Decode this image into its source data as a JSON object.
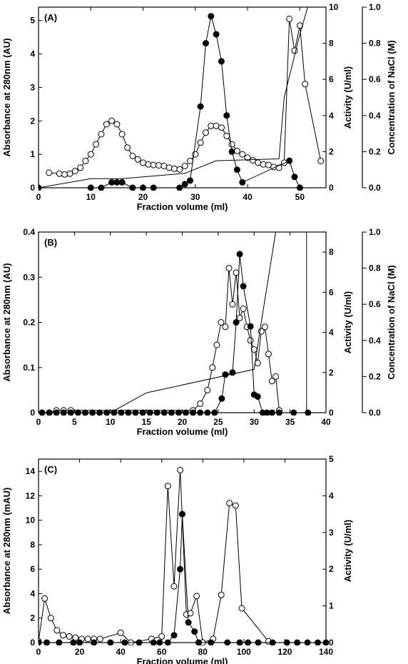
{
  "chart_data": [
    {
      "type": "line",
      "panel_label": "(A)",
      "xlabel": "Fraction volume (ml)",
      "ylabel": "Absorbance at 280nm (AU)",
      "y2label": "Activity (U/ml)",
      "y3label": "Concentration of NaCl (M)",
      "xlim": [
        0,
        55
      ],
      "ylim": [
        0,
        5.4
      ],
      "y2lim": [
        0,
        10
      ],
      "y3lim": [
        0,
        1.0
      ],
      "x_ticks": [
        "0",
        "10",
        "20",
        "30",
        "40",
        "50"
      ],
      "y_ticks": [
        "0",
        "1",
        "2",
        "3",
        "4",
        "5"
      ],
      "y2_ticks": [
        "0",
        "2",
        "4",
        "6",
        "8",
        "10"
      ],
      "y3_ticks": [
        "0.0",
        "0.2",
        "0.4",
        "0.6",
        "0.8",
        "1.0"
      ],
      "series": [
        {
          "axis": "left",
          "marker": "open",
          "x": [
            2,
            4,
            5,
            6,
            7,
            8,
            9,
            10,
            11,
            12,
            13,
            14,
            15,
            16,
            17,
            18,
            19,
            20,
            21,
            22,
            23,
            24,
            25,
            26,
            27,
            28,
            29,
            30,
            31,
            32,
            33,
            34,
            35,
            36,
            37,
            38,
            39,
            40,
            41,
            42,
            43,
            44,
            45,
            46,
            47,
            48,
            49,
            50,
            51,
            54
          ],
          "y": [
            0.45,
            0.42,
            0.4,
            0.42,
            0.5,
            0.6,
            0.8,
            1.0,
            1.3,
            1.6,
            1.9,
            2.0,
            1.9,
            1.6,
            1.2,
            0.95,
            0.85,
            0.75,
            0.7,
            0.68,
            0.67,
            0.65,
            0.6,
            0.57,
            0.55,
            0.65,
            0.8,
            1.0,
            1.35,
            1.65,
            1.85,
            1.85,
            1.8,
            1.55,
            1.3,
            1.1,
            1.0,
            0.9,
            0.82,
            0.75,
            0.7,
            0.68,
            0.62,
            0.6,
            0.75,
            5.05,
            4.1,
            4.85,
            3.1,
            0.8
          ]
        },
        {
          "axis": "right",
          "marker": "filled",
          "x": [
            0,
            10,
            12,
            14,
            15,
            16,
            18,
            20,
            22,
            27,
            28,
            29,
            31,
            32,
            33,
            34,
            35,
            36,
            37,
            38,
            39,
            48,
            49,
            50
          ],
          "y": [
            0,
            0,
            0,
            0.3,
            0.3,
            0.3,
            0,
            0,
            0,
            0,
            0.2,
            0.4,
            4.5,
            8.0,
            9.5,
            8.5,
            7.0,
            4.0,
            2.0,
            1.0,
            0.3,
            1.5,
            0.6,
            0
          ]
        },
        {
          "axis": "third",
          "marker": "line",
          "x": [
            0,
            10,
            16,
            28,
            34,
            46,
            47,
            50,
            51.5
          ],
          "y": [
            0,
            0.05,
            0.05,
            0.08,
            0.15,
            0.16,
            0.5,
            0.85,
            1.0
          ]
        }
      ]
    },
    {
      "type": "line",
      "panel_label": "(B)",
      "xlabel": "Fraction volume (ml)",
      "ylabel": "Absorbance at 280nm (AU)",
      "y2label": "Activity (U/ml)",
      "y3label": "Concentration of NaCl (M)",
      "xlim": [
        0,
        40
      ],
      "ylim": [
        0,
        0.4
      ],
      "y2lim": [
        0,
        9
      ],
      "y3lim": [
        0,
        1.0
      ],
      "x_ticks": [
        "0",
        "5",
        "10",
        "15",
        "20",
        "25",
        "30",
        "35",
        "40"
      ],
      "y_ticks": [
        "0",
        "0.1",
        "0.2",
        "0.3",
        "0.4"
      ],
      "y2_ticks": [
        "0",
        "2",
        "4",
        "6",
        "8"
      ],
      "y3_ticks": [
        "0.0",
        "0.2",
        "0.4",
        "0.6",
        "0.8",
        "1.0"
      ],
      "series": [
        {
          "axis": "left",
          "marker": "open",
          "x": [
            0.5,
            1.5,
            2.5,
            3.5,
            4.5,
            21.5,
            22.5,
            23.5,
            24.2,
            24.8,
            25.4,
            26.0,
            26.5,
            27.0,
            27.5,
            28.0,
            28.5,
            29.0,
            29.5,
            30.0,
            30.5,
            31.0,
            31.5,
            32.0,
            32.5,
            33.0,
            33.5
          ],
          "y": [
            0,
            0,
            0.005,
            0.005,
            0.005,
            0.005,
            0.02,
            0.05,
            0.1,
            0.15,
            0.2,
            0.19,
            0.32,
            0.24,
            0.31,
            0.21,
            0.23,
            0.19,
            0.16,
            0.14,
            0.11,
            0.18,
            0.19,
            0.13,
            0.07,
            0.08,
            0.005
          ]
        },
        {
          "axis": "right",
          "marker": "filled",
          "x": [
            0.5,
            1.5,
            2.5,
            3.5,
            4.5,
            5.5,
            6.5,
            7.5,
            8.5,
            9.5,
            10.5,
            11.5,
            12.5,
            13.5,
            14.5,
            15.5,
            16.5,
            17.5,
            18.5,
            19.5,
            20.5,
            21.5,
            22.5,
            23.5,
            24.5,
            25.5,
            26.0,
            27.0,
            27.5,
            28.0,
            28.5,
            29.5,
            30.0,
            30.5,
            31.2,
            31.8,
            32.5,
            33.5,
            35.5,
            37.5
          ],
          "y": [
            0,
            0,
            0,
            0,
            0,
            0,
            0,
            0,
            0,
            0,
            0,
            0,
            0,
            0,
            0,
            0,
            0,
            0,
            0,
            0,
            0,
            0,
            0,
            0,
            0,
            0.7,
            1.9,
            2.0,
            4.5,
            7.9,
            6.3,
            4.3,
            0.9,
            0.8,
            0,
            0,
            0,
            0,
            0,
            0
          ]
        },
        {
          "axis": "third",
          "marker": "line",
          "x": [
            0,
            10,
            15,
            30,
            31,
            33
          ],
          "y": [
            0,
            0,
            0.11,
            0.24,
            0.5,
            1.0
          ]
        }
      ]
    },
    {
      "type": "line",
      "panel_label": "(C)",
      "xlabel": "Fraction volume (ml)",
      "ylabel": "Absorbance at 280nm (mAU)",
      "y2label": "Activity (U/ml)",
      "xlim": [
        0,
        140
      ],
      "ylim": [
        0,
        15
      ],
      "y2lim": [
        0,
        5
      ],
      "x_ticks": [
        "0",
        "20",
        "40",
        "60",
        "80",
        "100",
        "120",
        "140"
      ],
      "y_ticks": [
        "0",
        "2",
        "4",
        "6",
        "8",
        "10",
        "12",
        "14"
      ],
      "y2_ticks": [
        "0",
        "1",
        "2",
        "3",
        "4",
        "5"
      ],
      "series": [
        {
          "axis": "left",
          "marker": "open",
          "x": [
            0,
            3,
            6,
            9,
            12,
            15,
            18,
            21,
            24,
            27,
            30,
            40,
            45,
            55,
            60,
            63,
            66,
            69,
            72,
            74,
            77,
            80,
            85,
            89,
            93,
            96,
            99,
            112
          ],
          "y": [
            0.1,
            3.6,
            2.0,
            1.0,
            0.6,
            0.5,
            0.4,
            0.3,
            0.3,
            0.3,
            0.3,
            0.8,
            0.0,
            0.3,
            0.5,
            12.8,
            4.6,
            14.1,
            2.3,
            2.4,
            3.8,
            0.0,
            0.3,
            3.9,
            11.4,
            11.2,
            2.8,
            0.1
          ]
        },
        {
          "axis": "right",
          "marker": "filled",
          "x": [
            0,
            4,
            10,
            17,
            20,
            27,
            35,
            42,
            49,
            56,
            59,
            63,
            66,
            69,
            70,
            73,
            76,
            78,
            84,
            92,
            98,
            102,
            107,
            114,
            121,
            126,
            131,
            136,
            140
          ],
          "y": [
            0,
            0,
            0,
            0,
            0,
            0,
            0,
            0,
            0,
            0,
            0,
            0,
            0.2,
            2.0,
            3.5,
            0.55,
            0.3,
            0,
            0,
            0,
            0,
            0,
            0,
            0,
            0,
            0,
            0,
            0,
            0
          ]
        }
      ]
    }
  ]
}
